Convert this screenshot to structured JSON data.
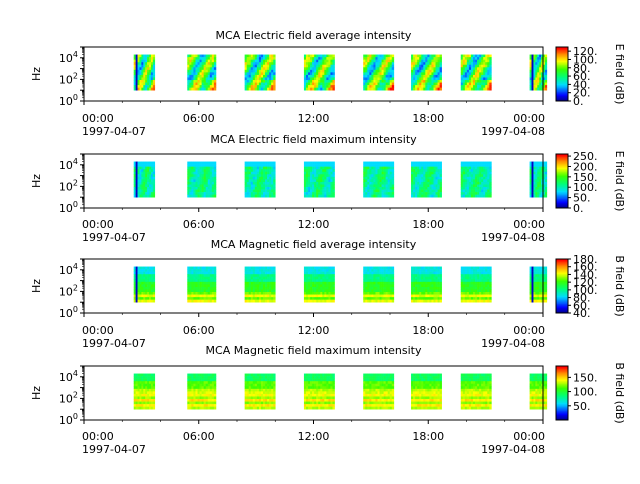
{
  "chart_data": [
    {
      "type": "heatmap",
      "title": "MCA  Electric field average intensity",
      "ylabel": "Hz",
      "y_scale": "log",
      "ylim": [
        1,
        100000
      ],
      "y_ticks": [
        {
          "exp": "0"
        },
        {
          "exp": "2"
        },
        {
          "exp": "4"
        }
      ],
      "x_ticks": [
        "00:00",
        "06:00",
        "12:00",
        "18:00",
        "00:00"
      ],
      "x_date_start": "1997-04-07",
      "x_date_end": "1997-04-08",
      "colorbar": {
        "label": "E field (dB)",
        "ticks": [
          "0.",
          "20.",
          "40.",
          "60.",
          "80.",
          "100.",
          "120."
        ],
        "range": [
          0,
          130
        ]
      },
      "data_windows_utc": [
        [
          2.6,
          3.7
        ],
        [
          5.4,
          6.9
        ],
        [
          8.4,
          10.0
        ],
        [
          11.5,
          13.1
        ],
        [
          14.6,
          16.2
        ],
        [
          17.1,
          18.7
        ],
        [
          19.7,
          21.3
        ],
        [
          23.3,
          24.2
        ]
      ],
      "freq_range_hz": [
        10,
        20000
      ],
      "grid": false
    },
    {
      "type": "heatmap",
      "title": "MCA  Electric field maximum intensity",
      "ylabel": "Hz",
      "y_scale": "log",
      "ylim": [
        1,
        100000
      ],
      "y_ticks": [
        {
          "exp": "0"
        },
        {
          "exp": "2"
        },
        {
          "exp": "4"
        }
      ],
      "x_ticks": [
        "00:00",
        "06:00",
        "12:00",
        "18:00",
        "00:00"
      ],
      "x_date_start": "1997-04-07",
      "x_date_end": "1997-04-08",
      "colorbar": {
        "label": "E field (dB)",
        "ticks": [
          "0.",
          "50.",
          "100.",
          "150.",
          "200.",
          "250."
        ],
        "range": [
          0,
          260
        ]
      },
      "data_windows_utc": [
        [
          2.6,
          3.7
        ],
        [
          5.4,
          6.9
        ],
        [
          8.4,
          10.0
        ],
        [
          11.5,
          13.1
        ],
        [
          14.6,
          16.2
        ],
        [
          17.1,
          18.7
        ],
        [
          19.7,
          21.3
        ],
        [
          23.3,
          24.2
        ]
      ],
      "freq_range_hz": [
        10,
        20000
      ],
      "grid": false
    },
    {
      "type": "heatmap",
      "title": "MCA  Magnetic field average intensity",
      "ylabel": "Hz",
      "y_scale": "log",
      "ylim": [
        1,
        100000
      ],
      "y_ticks": [
        {
          "exp": "0"
        },
        {
          "exp": "2"
        },
        {
          "exp": "4"
        }
      ],
      "x_ticks": [
        "00:00",
        "06:00",
        "12:00",
        "18:00",
        "00:00"
      ],
      "x_date_start": "1997-04-07",
      "x_date_end": "1997-04-08",
      "colorbar": {
        "label": "B field (dB)",
        "ticks": [
          "40.",
          "60.",
          "80.",
          "100.",
          "120.",
          "140.",
          "160.",
          "180."
        ],
        "range": [
          40,
          180
        ]
      },
      "data_windows_utc": [
        [
          2.6,
          3.7
        ],
        [
          5.4,
          6.9
        ],
        [
          8.4,
          10.0
        ],
        [
          11.5,
          13.1
        ],
        [
          14.6,
          16.2
        ],
        [
          17.1,
          18.7
        ],
        [
          19.7,
          21.3
        ],
        [
          23.3,
          24.2
        ]
      ],
      "freq_range_hz": [
        10,
        20000
      ],
      "grid": false
    },
    {
      "type": "heatmap",
      "title": "MCA  Magnetic field maximum intensity",
      "ylabel": "Hz",
      "y_scale": "log",
      "ylim": [
        1,
        100000
      ],
      "y_ticks": [
        {
          "exp": "0"
        },
        {
          "exp": "2"
        },
        {
          "exp": "4"
        }
      ],
      "x_ticks": [
        "00:00",
        "06:00",
        "12:00",
        "18:00",
        "00:00"
      ],
      "x_date_start": "1997-04-07",
      "x_date_end": "1997-04-08",
      "colorbar": {
        "label": "B field (dB)",
        "ticks": [
          "50.",
          "100.",
          "150."
        ],
        "range": [
          0,
          190
        ]
      },
      "data_windows_utc": [
        [
          2.6,
          3.7
        ],
        [
          5.4,
          6.9
        ],
        [
          8.4,
          10.0
        ],
        [
          11.5,
          13.1
        ],
        [
          14.6,
          16.2
        ],
        [
          17.1,
          18.7
        ],
        [
          19.7,
          21.3
        ],
        [
          23.3,
          24.2
        ]
      ],
      "freq_range_hz": [
        10,
        20000
      ],
      "grid": false
    }
  ]
}
